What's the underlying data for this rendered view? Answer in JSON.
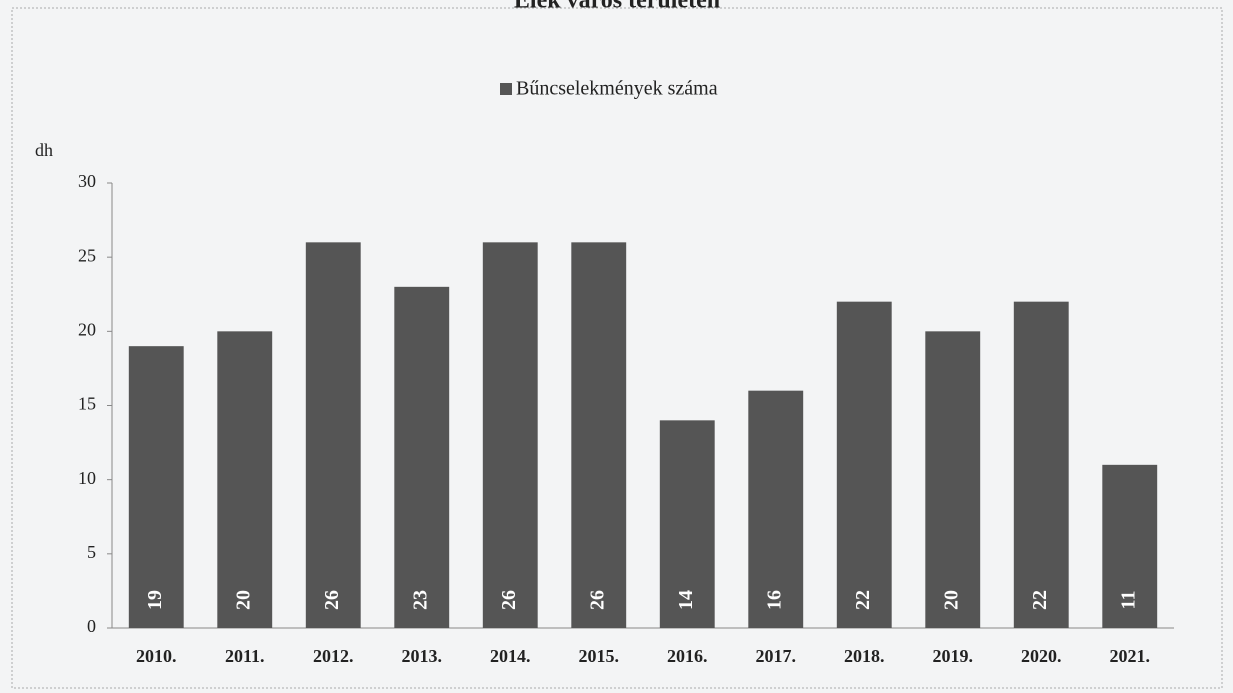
{
  "chart_data": {
    "type": "bar",
    "title": "Elek város területén",
    "legend": "Bűncselekmények száma",
    "y_label": "dh",
    "categories": [
      "2010.",
      "2011.",
      "2012.",
      "2013.",
      "2014.",
      "2015.",
      "2016.",
      "2017.",
      "2018.",
      "2019.",
      "2020.",
      "2021."
    ],
    "values": [
      19,
      20,
      26,
      23,
      26,
      26,
      14,
      16,
      22,
      20,
      22,
      11
    ],
    "color": "#555555",
    "ylim": [
      0,
      30
    ],
    "yticks": [
      0,
      5,
      10,
      15,
      20,
      25,
      30
    ],
    "grid": false
  }
}
